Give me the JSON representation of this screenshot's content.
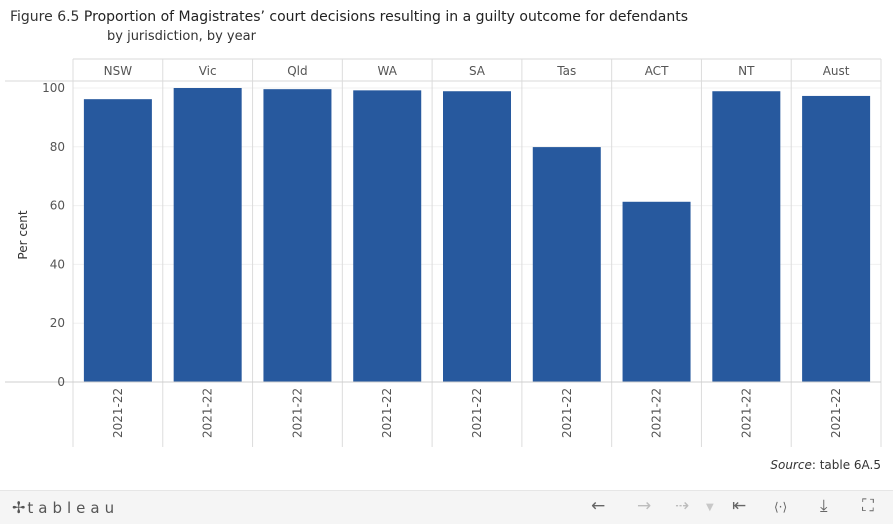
{
  "title": {
    "prefix": "Figure 6.5 ",
    "main": "Proportion of Magistrates’ court decisions resulting in a guilty outcome for defendants",
    "subtitle": "by jurisdiction, by year"
  },
  "source": {
    "label": "Source",
    "text": ": table 6A.5"
  },
  "chart_data": {
    "type": "bar",
    "categories": [
      "NSW",
      "Vic",
      "Qld",
      "WA",
      "SA",
      "Tas",
      "ACT",
      "NT",
      "Aust"
    ],
    "x_sublabels": [
      "2021-22",
      "2021-22",
      "2021-22",
      "2021-22",
      "2021-22",
      "2021-22",
      "2021-22",
      "2021-22",
      "2021-22"
    ],
    "series": [
      {
        "values": [
          96.2,
          100.0,
          99.6,
          99.2,
          98.9,
          79.9,
          61.3,
          98.9,
          97.3
        ]
      }
    ],
    "ylabel": "Per cent",
    "xlabel": "",
    "ylim": [
      0,
      100
    ],
    "yticks": [
      0,
      20,
      40,
      60,
      80,
      100
    ],
    "bar_color": "#27599e",
    "grid": true
  },
  "toolbar": {
    "logo_mark": "✢",
    "logo_text": "tableau",
    "undo_icon": "←",
    "redo_icon": "→",
    "revert_icon": "⇢",
    "dropdown_icon": "▼",
    "reset_icon": "⇤",
    "share_icon": "⟨·⟩",
    "download_icon": "⤓",
    "fullscreen_icon": "⛶"
  }
}
